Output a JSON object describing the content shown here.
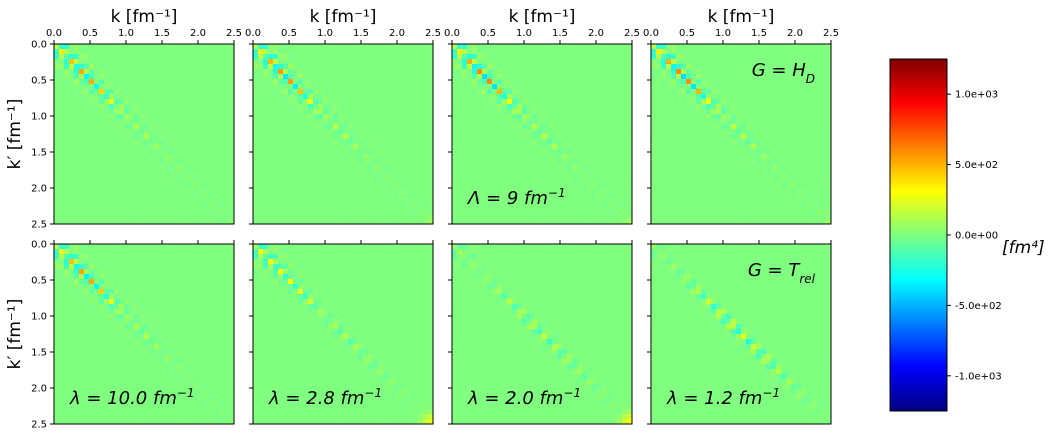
{
  "chart_data": {
    "type": "heatmap",
    "colormap": "jet",
    "grid": false,
    "x_axis": {
      "label": "k [fm⁻¹]",
      "position": "top",
      "range": [
        0,
        2.5
      ],
      "ticks": [
        "0.0",
        "0.5",
        "1.0",
        "1.5",
        "2.0",
        "2.5"
      ]
    },
    "y_axis": {
      "label": "k′ [fm⁻¹]",
      "range": [
        0,
        2.5
      ],
      "inverted": true,
      "ticks": [
        "0.0",
        "0.5",
        "1.0",
        "1.5",
        "2.0",
        "2.5"
      ]
    },
    "colorbar": {
      "label": "[fm⁴]",
      "range": [
        -1250,
        1250
      ],
      "ticks": [
        {
          "value": 1000,
          "label": "1.0e+03"
        },
        {
          "value": 500,
          "label": "5.0e+02"
        },
        {
          "value": 0,
          "label": "0.0e+00"
        },
        {
          "value": -500,
          "label": "-5.0e+02"
        },
        {
          "value": -1000,
          "label": "-1.0e+03"
        }
      ]
    },
    "row_labels": [
      {
        "base": "G = H",
        "sub": "D"
      },
      {
        "base": "G = T",
        "sub": "rel"
      }
    ],
    "panel_annotation": {
      "base": "Λ = 9 fm",
      "sup": "−1"
    },
    "panels": [
      {
        "row": 0,
        "col": 0,
        "diag_amplitude": 1150,
        "diag_extent": 0.45,
        "offdiag_extent": 0.75,
        "tail_amplitude": 20,
        "corner": 0
      },
      {
        "row": 0,
        "col": 1,
        "diag_amplitude": 1150,
        "diag_extent": 0.5,
        "offdiag_extent": 0.75,
        "tail_amplitude": 30,
        "corner": 60
      },
      {
        "row": 0,
        "col": 2,
        "diag_amplitude": 1150,
        "diag_extent": 0.55,
        "offdiag_extent": 0.75,
        "tail_amplitude": 30,
        "corner": 60
      },
      {
        "row": 0,
        "col": 3,
        "diag_amplitude": 1150,
        "diag_extent": 0.55,
        "offdiag_extent": 0.75,
        "tail_amplitude": 25,
        "corner": 40
      },
      {
        "row": 1,
        "col": 0,
        "lambda": "10.0",
        "diag_amplitude": 1100,
        "diag_extent": 0.5,
        "offdiag_extent": 0.7,
        "tail_amplitude": 30,
        "corner": 0
      },
      {
        "row": 1,
        "col": 1,
        "lambda": "2.8",
        "diag_amplitude": 1000,
        "diag_extent": 0.35,
        "offdiag_extent": 0.45,
        "tail_amplitude": 110,
        "corner": 300
      },
      {
        "row": 1,
        "col": 2,
        "lambda": "2.0",
        "diag_amplitude": 700,
        "diag_extent": 0.12,
        "offdiag_extent": 0.2,
        "tail_amplitude": 170,
        "corner": 350
      },
      {
        "row": 1,
        "col": 3,
        "lambda": "1.2",
        "diag_amplitude": 450,
        "diag_extent": 0.05,
        "offdiag_extent": 0.1,
        "tail_amplitude": 260,
        "corner": 0
      }
    ]
  }
}
